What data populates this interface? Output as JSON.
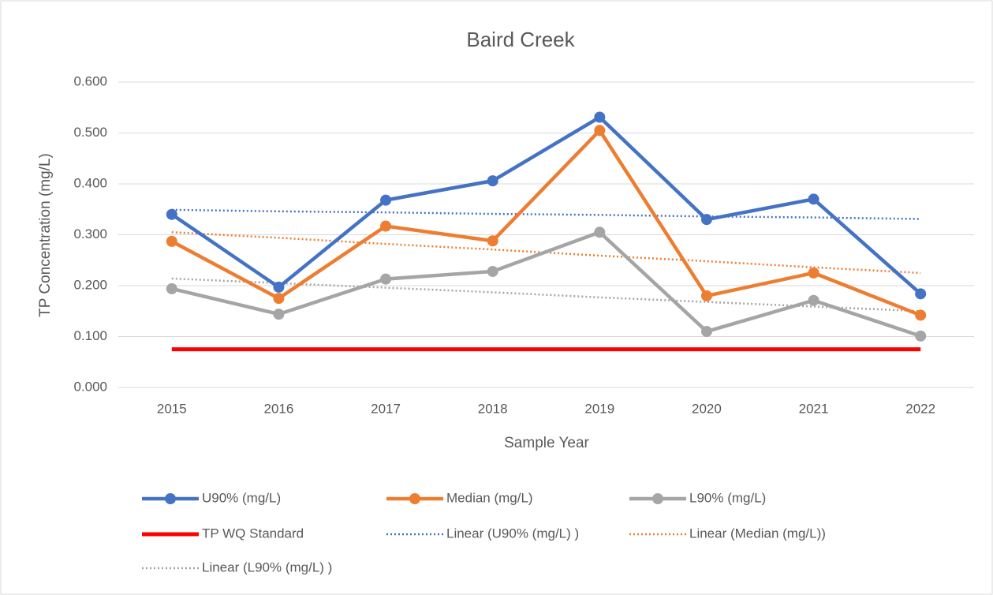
{
  "chart_data": {
    "type": "line",
    "title": "Baird Creek",
    "x_label": "Sample Year",
    "y_label": "TP Concentration (mg/L)",
    "categories": [
      "2015",
      "2016",
      "2017",
      "2018",
      "2019",
      "2020",
      "2021",
      "2022"
    ],
    "ylim": [
      0,
      0.6
    ],
    "yticks": [
      {
        "value": 0,
        "label": "0.000"
      },
      {
        "value": 0.1,
        "label": "0.100"
      },
      {
        "value": 0.2,
        "label": "0.200"
      },
      {
        "value": 0.3,
        "label": "0.300"
      },
      {
        "value": 0.4,
        "label": "0.400"
      },
      {
        "value": 0.5,
        "label": "0.500"
      },
      {
        "value": 0.6,
        "label": "0.600"
      }
    ],
    "grid": true,
    "legend": "bottom",
    "series": [
      {
        "name": "U90% (mg/L)",
        "color": "#4472c4",
        "style": "solid",
        "markers": true,
        "values": [
          0.34,
          0.197,
          0.368,
          0.406,
          0.531,
          0.33,
          0.37,
          0.184
        ]
      },
      {
        "name": "Median (mg/L)",
        "color": "#ed7d31",
        "style": "solid",
        "markers": true,
        "values": [
          0.287,
          0.175,
          0.317,
          0.288,
          0.505,
          0.18,
          0.225,
          0.142
        ]
      },
      {
        "name": "L90% (mg/L)",
        "color": "#a5a5a5",
        "style": "solid",
        "markers": true,
        "values": [
          0.194,
          0.144,
          0.213,
          0.228,
          0.305,
          0.11,
          0.171,
          0.101
        ]
      },
      {
        "name": "TP WQ Standard",
        "color": "#ff0000",
        "style": "thick",
        "markers": false,
        "values": [
          0.075,
          0.075,
          0.075,
          0.075,
          0.075,
          0.075,
          0.075,
          0.075
        ]
      },
      {
        "name": "Linear (U90% (mg/L)  )",
        "color": "#4472c4",
        "style": "dotted",
        "markers": false,
        "values": [
          0.349,
          0.346,
          0.344,
          0.341,
          0.339,
          0.336,
          0.334,
          0.331
        ]
      },
      {
        "name": "Linear (Median (mg/L))",
        "color": "#ed7d31",
        "style": "dotted",
        "markers": false,
        "values": [
          0.305,
          0.294,
          0.282,
          0.271,
          0.259,
          0.248,
          0.236,
          0.225
        ]
      },
      {
        "name": "Linear (L90% (mg/L)  )",
        "color": "#a5a5a5",
        "style": "dotted",
        "markers": false,
        "values": [
          0.214,
          0.205,
          0.196,
          0.187,
          0.177,
          0.168,
          0.159,
          0.15
        ]
      }
    ]
  }
}
